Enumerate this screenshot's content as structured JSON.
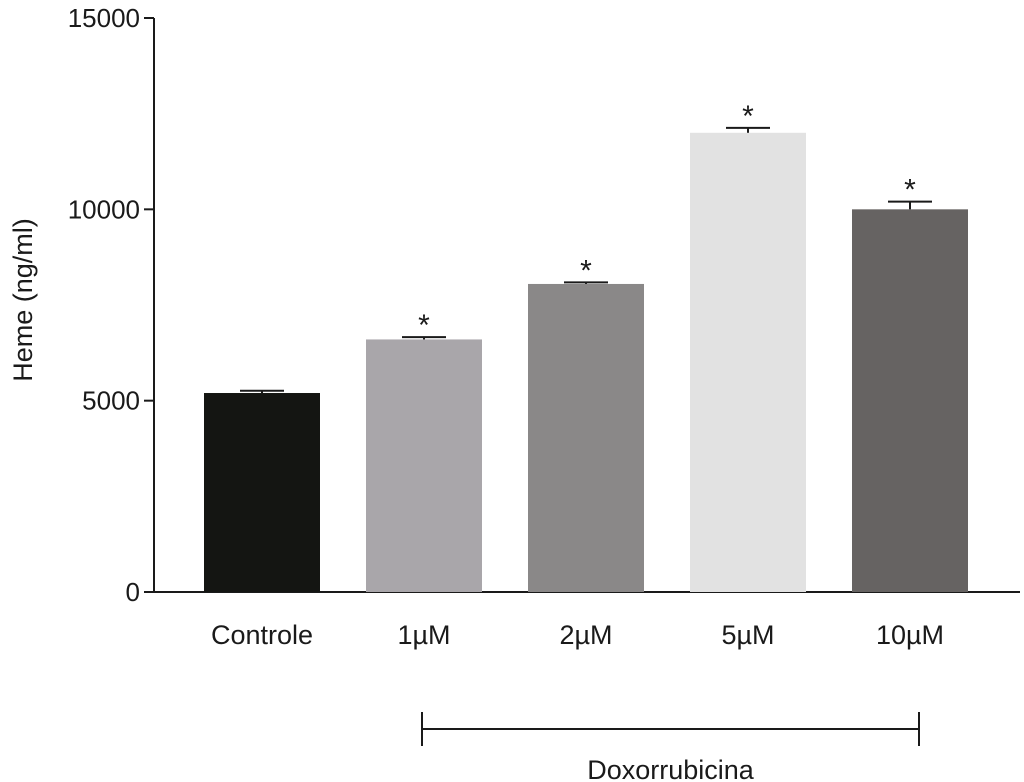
{
  "chart_data": {
    "type": "bar",
    "categories": [
      "Controle",
      "1µM",
      "2µM",
      "5µM",
      "10µM"
    ],
    "values": [
      5200,
      6600,
      8050,
      12000,
      10000
    ],
    "errors": [
      60,
      60,
      40,
      130,
      200
    ],
    "significance": [
      "",
      "*",
      "*",
      "*",
      "*"
    ],
    "colors": [
      "#141512",
      "#a9a6aa",
      "#8a8888",
      "#e2e2e2",
      "#666362"
    ],
    "ylabel": "Heme (ng/ml)",
    "ylim": [
      0,
      15000
    ],
    "yticks": [
      0,
      5000,
      10000,
      15000
    ],
    "group": {
      "label": "Doxorrubicina",
      "from": 1,
      "to": 4
    }
  }
}
